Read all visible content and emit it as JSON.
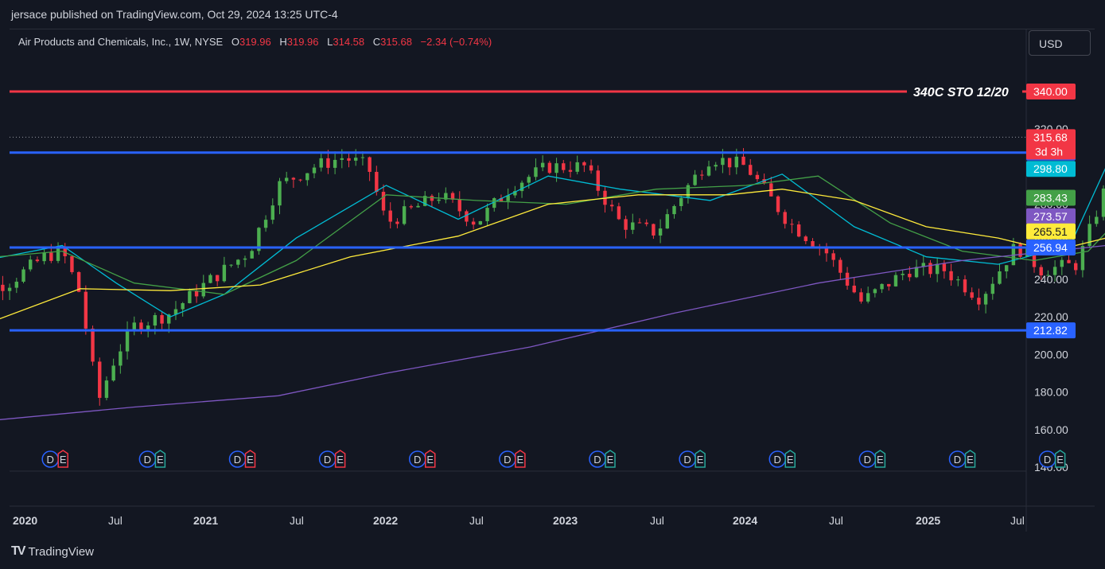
{
  "header": {
    "published": "jersace published on TradingView.com, Oct 29, 2024 13:25 UTC-4"
  },
  "legend": {
    "symbol": "Air Products and Chemicals, Inc., 1W, NYSE",
    "open_label": "O",
    "open": "319.96",
    "high_label": "H",
    "high": "319.96",
    "low_label": "L",
    "low": "314.58",
    "close_label": "C",
    "close": "315.68",
    "change": "−2.34 (−0.74%)"
  },
  "currency_button": "USD",
  "footer": {
    "brand": "TradingView",
    "brand_mark": "TV"
  },
  "colors": {
    "background": "#131722",
    "up": "#4caf50",
    "down": "#f23645",
    "hline_red": "#f23645",
    "hline_blue": "#2962ff",
    "ma_cyan": "#00bcd4",
    "ma_green": "#43a047",
    "ma_yellow": "#ffeb3b",
    "ma_purple": "#7e57c2"
  },
  "chart_data": {
    "type": "candlestick",
    "interval": "1W",
    "y_ticks": [
      "140.00",
      "160.00",
      "180.00",
      "200.00",
      "220.00",
      "240.00",
      "260.00",
      "280.00",
      "300.00",
      "320.00"
    ],
    "x_ticks": [
      "2020",
      "Jul",
      "2021",
      "Jul",
      "2022",
      "Jul",
      "2023",
      "Jul",
      "2024",
      "Jul",
      "2025",
      "Jul"
    ],
    "ylim": [
      140,
      345
    ],
    "horizontal_lines": [
      {
        "value": 340.0,
        "label": "340.00",
        "color": "#f23645",
        "annotation": "340C STO 12/20"
      },
      {
        "value": 307.5,
        "label": "307.50",
        "color": "#2962ff"
      },
      {
        "value": 256.94,
        "label": "256.94",
        "color": "#2962ff"
      },
      {
        "value": 212.82,
        "label": "212.82",
        "color": "#2962ff"
      }
    ],
    "price_badges": [
      {
        "value": 315.68,
        "label": "315.68",
        "sublabel": "3d 3h",
        "color": "#f23645"
      },
      {
        "value": 298.8,
        "label": "298.80",
        "color": "#00bcd4"
      },
      {
        "value": 283.43,
        "label": "283.43",
        "color": "#43a047"
      },
      {
        "value": 273.57,
        "label": "273.57",
        "color": "#7e57c2"
      },
      {
        "value": 265.51,
        "label": "265.51",
        "color": "#ffeb3b"
      }
    ],
    "moving_averages": [
      {
        "color": "#00bcd4",
        "points": [
          [
            2019.8,
            247
          ],
          [
            2020.1,
            258
          ],
          [
            2020.25,
            238
          ],
          [
            2020.4,
            220
          ],
          [
            2020.55,
            232
          ],
          [
            2020.75,
            262
          ],
          [
            2021.0,
            290
          ],
          [
            2021.2,
            272
          ],
          [
            2021.45,
            295
          ],
          [
            2021.65,
            288
          ],
          [
            2021.9,
            282
          ],
          [
            2022.1,
            296
          ],
          [
            2022.3,
            268
          ],
          [
            2022.5,
            252
          ],
          [
            2022.7,
            248
          ],
          [
            2022.9,
            258
          ],
          [
            2023.0,
            300
          ],
          [
            2023.1,
            305
          ],
          [
            2023.3,
            292
          ],
          [
            2023.5,
            285
          ],
          [
            2023.7,
            290
          ],
          [
            2023.85,
            296
          ],
          [
            2024.0,
            262
          ],
          [
            2024.15,
            252
          ],
          [
            2024.3,
            242
          ],
          [
            2024.45,
            258
          ],
          [
            2024.6,
            266
          ],
          [
            2024.8,
            298.8
          ]
        ]
      },
      {
        "color": "#43a047",
        "points": [
          [
            2019.8,
            250
          ],
          [
            2020.1,
            255
          ],
          [
            2020.3,
            238
          ],
          [
            2020.55,
            232
          ],
          [
            2020.75,
            250
          ],
          [
            2021.0,
            285
          ],
          [
            2021.25,
            282
          ],
          [
            2021.5,
            280
          ],
          [
            2021.75,
            288
          ],
          [
            2022.0,
            290
          ],
          [
            2022.2,
            295
          ],
          [
            2022.4,
            270
          ],
          [
            2022.6,
            255
          ],
          [
            2022.8,
            250
          ],
          [
            2022.95,
            255
          ],
          [
            2023.1,
            285
          ],
          [
            2023.35,
            298
          ],
          [
            2023.6,
            292
          ],
          [
            2023.85,
            298
          ],
          [
            2024.0,
            280
          ],
          [
            2024.15,
            262
          ],
          [
            2024.3,
            250
          ],
          [
            2024.45,
            252
          ],
          [
            2024.6,
            262
          ],
          [
            2024.8,
            283.43
          ]
        ]
      },
      {
        "color": "#ffeb3b",
        "points": [
          [
            2019.8,
            210
          ],
          [
            2020.15,
            235
          ],
          [
            2020.4,
            234
          ],
          [
            2020.65,
            237
          ],
          [
            2020.9,
            252
          ],
          [
            2021.2,
            263
          ],
          [
            2021.45,
            280
          ],
          [
            2021.7,
            285
          ],
          [
            2021.95,
            285
          ],
          [
            2022.1,
            288
          ],
          [
            2022.3,
            282
          ],
          [
            2022.5,
            268
          ],
          [
            2022.7,
            262
          ],
          [
            2022.85,
            255
          ],
          [
            2023.0,
            262
          ],
          [
            2023.3,
            270
          ],
          [
            2023.55,
            280
          ],
          [
            2023.8,
            292
          ],
          [
            2024.0,
            285
          ],
          [
            2024.2,
            278
          ],
          [
            2024.4,
            272
          ],
          [
            2024.6,
            262
          ],
          [
            2024.8,
            265.51
          ]
        ]
      },
      {
        "color": "#7e57c2",
        "points": [
          [
            2019.8,
            163
          ],
          [
            2020.3,
            172
          ],
          [
            2020.7,
            178
          ],
          [
            2021.0,
            190
          ],
          [
            2021.4,
            204
          ],
          [
            2021.8,
            222
          ],
          [
            2022.2,
            238
          ],
          [
            2022.6,
            250
          ],
          [
            2023.0,
            258
          ],
          [
            2023.4,
            266
          ],
          [
            2023.8,
            274
          ],
          [
            2024.2,
            276
          ],
          [
            2024.6,
            274
          ],
          [
            2024.8,
            273.57
          ]
        ]
      }
    ],
    "earnings_markers": {
      "dividend_label": "D",
      "earnings_label": "E",
      "positions": [
        2019.85,
        2020.08,
        2020.35,
        2020.6,
        2020.85,
        2021.1,
        2021.35,
        2021.6,
        2021.85,
        2022.1,
        2022.35,
        2022.6,
        2022.85,
        2023.1,
        2023.35,
        2023.6,
        2023.85,
        2024.1,
        2024.35,
        2024.6,
        2024.85
      ],
      "earnings_status": [
        "pos",
        "neg",
        "pos",
        "neg",
        "neg",
        "neg",
        "neg",
        "pos",
        "pos",
        "pos",
        "pos",
        "pos",
        "pos",
        "neg",
        "pos",
        "pos",
        "pos",
        "neg",
        "pos",
        "pos",
        "upcoming"
      ]
    }
  }
}
